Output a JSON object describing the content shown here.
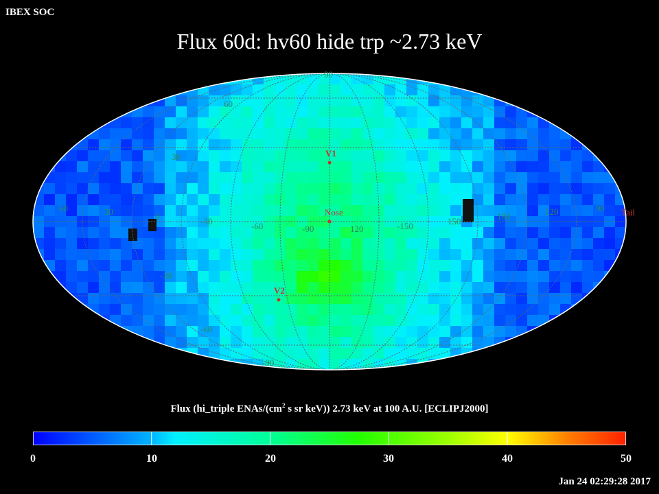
{
  "header": {
    "org": "IBEX SOC",
    "title": "Flux   60d: hv60 hide trp ~2.73 keV"
  },
  "map": {
    "projection": "Aitoff (ecliptic J2000)",
    "colormap": "blue-cyan-green-yellow-red",
    "background": "#000000",
    "gridline_color": "#5a6a70",
    "label_color": "#2e8b57",
    "marker_color": "#c8322d",
    "meridian_labels": [
      "0",
      "30",
      "60",
      "-30",
      "-60",
      "-90",
      "120",
      "-150",
      "150",
      "180",
      "120",
      "90"
    ],
    "parallel_labels": [
      "90",
      "60",
      "30",
      "-30",
      "-60",
      "-90"
    ],
    "markers": [
      {
        "label": "V1"
      },
      {
        "label": "Nose"
      },
      {
        "label": "V2"
      },
      {
        "label": "Tail"
      }
    ]
  },
  "colorbar": {
    "title_pre": "Flux (hi_triple ENAs/(cm",
    "title_sup": "2",
    "title_post": " s sr keV))  2.73 keV at 100 A.U. [ECLIPJ2000]",
    "range": [
      0,
      50
    ],
    "ticks": [
      "0",
      "10",
      "20",
      "30",
      "40",
      "50"
    ]
  },
  "footer": {
    "timestamp": "Jan 24 02:29:28 2017"
  }
}
